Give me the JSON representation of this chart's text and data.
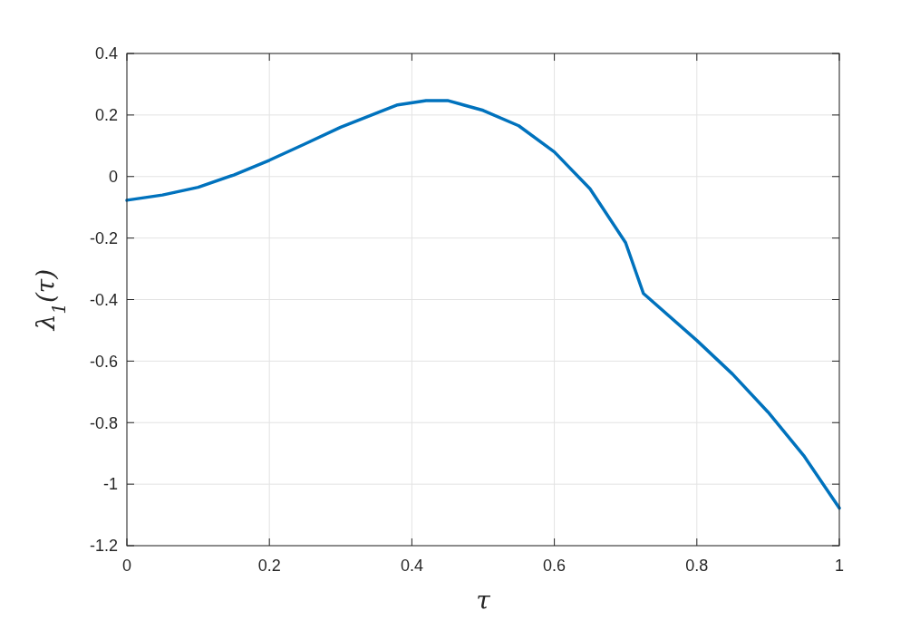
{
  "chart_data": {
    "type": "line",
    "xlabel": "τ",
    "ylabel": "λ$_{1}$(τ)",
    "x": [
      0,
      0.05,
      0.1,
      0.15,
      0.2,
      0.25,
      0.3,
      0.35,
      0.38,
      0.42,
      0.45,
      0.5,
      0.55,
      0.6,
      0.65,
      0.7,
      0.725,
      0.8,
      0.85,
      0.9,
      0.95,
      1
    ],
    "series": [
      {
        "color": "#0072bd",
        "values": [
          -0.077,
          -0.06,
          -0.035,
          0.005,
          0.053,
          0.106,
          0.16,
          0.206,
          0.233,
          0.247,
          0.247,
          0.215,
          0.165,
          0.08,
          -0.04,
          -0.215,
          -0.38,
          -0.533,
          -0.642,
          -0.766,
          -0.907,
          -1.078
        ]
      }
    ],
    "xlim": [
      0,
      1
    ],
    "xticks": [
      0,
      0.2,
      0.4,
      0.6,
      0.8,
      1
    ],
    "ylim": [
      -1.2,
      0.4
    ],
    "yticks": [
      -1.2,
      -1,
      -0.8,
      -0.6,
      -0.4,
      -0.2,
      0,
      0.2,
      0.4
    ],
    "grid": true,
    "marker": "none",
    "line_style": "solid"
  }
}
